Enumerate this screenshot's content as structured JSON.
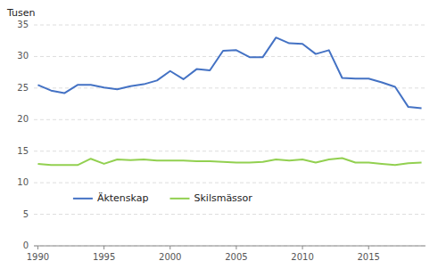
{
  "chart_data": {
    "type": "line",
    "ylabel": "Tusen",
    "x": [
      1990,
      1991,
      1992,
      1993,
      1994,
      1995,
      1996,
      1997,
      1998,
      1999,
      2000,
      2001,
      2002,
      2003,
      2004,
      2005,
      2006,
      2007,
      2008,
      2009,
      2010,
      2011,
      2012,
      2013,
      2014,
      2015,
      2016,
      2017,
      2018,
      2019
    ],
    "series": [
      {
        "name": "Äktenskap",
        "color": "#4472c4",
        "values": [
          25.5,
          24.6,
          24.2,
          25.5,
          25.5,
          25.1,
          24.8,
          25.3,
          25.6,
          26.2,
          27.7,
          26.4,
          28.0,
          27.8,
          30.9,
          31.0,
          29.9,
          29.9,
          33.0,
          32.1,
          32.0,
          30.4,
          31.0,
          26.6,
          26.5,
          26.5,
          25.9,
          25.2,
          22.0,
          21.8
        ]
      },
      {
        "name": "Skilsmässor",
        "color": "#92d050",
        "values": [
          13.0,
          12.8,
          12.8,
          12.8,
          13.8,
          13.0,
          13.7,
          13.6,
          13.7,
          13.5,
          13.5,
          13.5,
          13.4,
          13.4,
          13.3,
          13.2,
          13.2,
          13.3,
          13.7,
          13.5,
          13.7,
          13.2,
          13.7,
          13.9,
          13.2,
          13.2,
          13.0,
          12.8,
          13.1,
          13.2
        ]
      }
    ],
    "xlim": [
      1989.7,
      2019.3
    ],
    "xticks": [
      1990,
      1995,
      2000,
      2005,
      2010,
      2015
    ],
    "ylim": [
      0,
      35
    ],
    "yticks": [
      0,
      5,
      10,
      15,
      20,
      25,
      30,
      35
    ],
    "grid": "y",
    "legend": "lower left"
  }
}
